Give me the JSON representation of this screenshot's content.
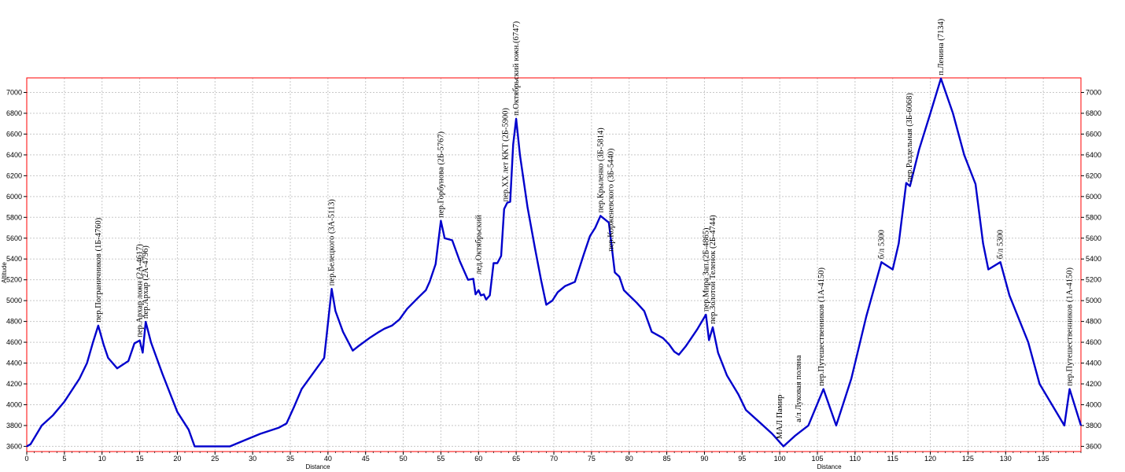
{
  "chart_data": {
    "type": "line",
    "xlabel": "Distance",
    "ylabel": "Altitude",
    "xlim": [
      0,
      140
    ],
    "ylim": [
      3550,
      7140
    ],
    "x_ticks": [
      0,
      5,
      10,
      15,
      20,
      25,
      30,
      35,
      40,
      45,
      50,
      55,
      60,
      65,
      70,
      75,
      80,
      85,
      90,
      95,
      100,
      105,
      110,
      115,
      120,
      125,
      130,
      135
    ],
    "y_ticks": [
      3600,
      3800,
      4000,
      4200,
      4400,
      4600,
      4800,
      5000,
      5200,
      5400,
      5600,
      5800,
      6000,
      6200,
      6400,
      6600,
      6800,
      7000
    ],
    "grid": true,
    "colors": {
      "line": "#0000cc",
      "frame": "#ff0000",
      "grid": "#c8c8c8"
    },
    "series": [
      {
        "points": [
          [
            0,
            3600
          ],
          [
            0.5,
            3620
          ],
          [
            2,
            3800
          ],
          [
            3.5,
            3900
          ],
          [
            5,
            4030
          ],
          [
            7,
            4250
          ],
          [
            8,
            4400
          ],
          [
            8.8,
            4600
          ],
          [
            9.5,
            4760
          ],
          [
            10.2,
            4580
          ],
          [
            10.8,
            4450
          ],
          [
            12,
            4350
          ],
          [
            13.5,
            4420
          ],
          [
            14.3,
            4590
          ],
          [
            15,
            4617
          ],
          [
            15.4,
            4500
          ],
          [
            15.8,
            4796
          ],
          [
            16.5,
            4600
          ],
          [
            18,
            4300
          ],
          [
            20,
            3930
          ],
          [
            21.5,
            3760
          ],
          [
            22.3,
            3600
          ],
          [
            27,
            3600
          ],
          [
            29,
            3660
          ],
          [
            31,
            3720
          ],
          [
            33.5,
            3780
          ],
          [
            34.5,
            3820
          ],
          [
            35.5,
            3980
          ],
          [
            36.5,
            4150
          ],
          [
            38,
            4300
          ],
          [
            39.5,
            4450
          ],
          [
            40.5,
            5113
          ],
          [
            41,
            4900
          ],
          [
            42,
            4700
          ],
          [
            43.3,
            4520
          ],
          [
            44,
            4560
          ],
          [
            45.5,
            4640
          ],
          [
            46.8,
            4700
          ],
          [
            47.5,
            4730
          ],
          [
            48.5,
            4760
          ],
          [
            49.5,
            4820
          ],
          [
            50.5,
            4920
          ],
          [
            52,
            5030
          ],
          [
            53,
            5100
          ],
          [
            53.5,
            5180
          ],
          [
            54.3,
            5350
          ],
          [
            55,
            5767
          ],
          [
            55.5,
            5600
          ],
          [
            56.5,
            5580
          ],
          [
            57.5,
            5380
          ],
          [
            58.6,
            5200
          ],
          [
            59.3,
            5210
          ],
          [
            59.6,
            5060
          ],
          [
            60,
            5100
          ],
          [
            60.3,
            5050
          ],
          [
            60.7,
            5060
          ],
          [
            61,
            5010
          ],
          [
            61.5,
            5050
          ],
          [
            62,
            5360
          ],
          [
            62.5,
            5360
          ],
          [
            63,
            5430
          ],
          [
            63.4,
            5880
          ],
          [
            63.8,
            5940
          ],
          [
            64.2,
            5950
          ],
          [
            64.6,
            6500
          ],
          [
            65,
            6747
          ],
          [
            65.5,
            6400
          ],
          [
            66.5,
            5900
          ],
          [
            67.5,
            5500
          ],
          [
            68.3,
            5200
          ],
          [
            69,
            4960
          ],
          [
            69.8,
            5000
          ],
          [
            70.5,
            5080
          ],
          [
            71.5,
            5140
          ],
          [
            72.8,
            5180
          ],
          [
            74,
            5450
          ],
          [
            74.8,
            5620
          ],
          [
            75.5,
            5700
          ],
          [
            76.2,
            5814
          ],
          [
            77.3,
            5750
          ],
          [
            78.1,
            5270
          ],
          [
            78.7,
            5230
          ],
          [
            79.3,
            5100
          ],
          [
            80,
            5050
          ],
          [
            81,
            4980
          ],
          [
            82,
            4900
          ],
          [
            83,
            4700
          ],
          [
            84.5,
            4640
          ],
          [
            85.3,
            4580
          ],
          [
            86,
            4510
          ],
          [
            86.6,
            4480
          ],
          [
            87.5,
            4560
          ],
          [
            89,
            4720
          ],
          [
            90.2,
            4865
          ],
          [
            90.6,
            4620
          ],
          [
            91.1,
            4744
          ],
          [
            91.8,
            4500
          ],
          [
            93,
            4280
          ],
          [
            94.5,
            4100
          ],
          [
            95.5,
            3950
          ],
          [
            97.5,
            3820
          ],
          [
            99,
            3720
          ],
          [
            100.5,
            3600
          ],
          [
            102,
            3700
          ],
          [
            103.8,
            3800
          ],
          [
            105.8,
            4150
          ],
          [
            107.5,
            3800
          ],
          [
            109.5,
            4250
          ],
          [
            111.5,
            4850
          ],
          [
            113.5,
            5370
          ],
          [
            115,
            5300
          ],
          [
            115.8,
            5550
          ],
          [
            116.8,
            6130
          ],
          [
            117.3,
            6100
          ],
          [
            118.5,
            6450
          ],
          [
            120,
            6800
          ],
          [
            121.4,
            7134
          ],
          [
            123,
            6800
          ],
          [
            124.5,
            6400
          ],
          [
            126,
            6120
          ],
          [
            127,
            5550
          ],
          [
            127.7,
            5300
          ],
          [
            129.3,
            5370
          ],
          [
            130.5,
            5050
          ],
          [
            133,
            4600
          ],
          [
            134.5,
            4200
          ],
          [
            137.8,
            3800
          ],
          [
            138.5,
            4150
          ],
          [
            140,
            3800
          ]
        ]
      }
    ],
    "annotations": [
      {
        "text": "пер.Пограничников (1Б-4760)",
        "x": 9.5,
        "y": 4760
      },
      {
        "text": "пер.Архар ложн (2А-4617)",
        "x": 15,
        "y": 4617
      },
      {
        "text": "пер.Архар (2А-4796)",
        "x": 15.8,
        "y": 4796
      },
      {
        "text": "пер.Белецкого (3А-5113)",
        "x": 40.5,
        "y": 5113
      },
      {
        "text": "пер.Горбунова (2Б-5767)",
        "x": 55,
        "y": 5767
      },
      {
        "text": "лед.Октябрьский",
        "x": 60,
        "y": 5220
      },
      {
        "text": "пер.XX лет КKT (2Б-5900)",
        "x": 63.6,
        "y": 5920
      },
      {
        "text": "п.Октябрьский южн.(6747)",
        "x": 65,
        "y": 6747
      },
      {
        "text": "пер.Крыленко (3Б-5814)",
        "x": 76.2,
        "y": 5814
      },
      {
        "text": "пер.Корженевского (3Б-5440)",
        "x": 77.6,
        "y": 5440
      },
      {
        "text": "пер.Мира Зап.(2Б-4865)",
        "x": 90.2,
        "y": 4865
      },
      {
        "text": "пер.Золотой Теленок (2Б-4744)",
        "x": 91.1,
        "y": 4744
      },
      {
        "text": "МАЛ Памир",
        "x": 100,
        "y": 3640
      },
      {
        "text": "а/л Луковая поляна",
        "x": 102.5,
        "y": 3800
      },
      {
        "text": "пер.Путешественников (1А-4150)",
        "x": 105.5,
        "y": 4150
      },
      {
        "text": "б/л 5300",
        "x": 113.5,
        "y": 5370
      },
      {
        "text": "пер.Раздельная (3Б-6068)",
        "x": 117.2,
        "y": 6110
      },
      {
        "text": "п.Ленина (7134)",
        "x": 121.4,
        "y": 7134
      },
      {
        "text": "б/л 5300",
        "x": 129.3,
        "y": 5370
      },
      {
        "text": "пер.Путешественников (1А-4150)",
        "x": 138.5,
        "y": 4150
      }
    ]
  }
}
